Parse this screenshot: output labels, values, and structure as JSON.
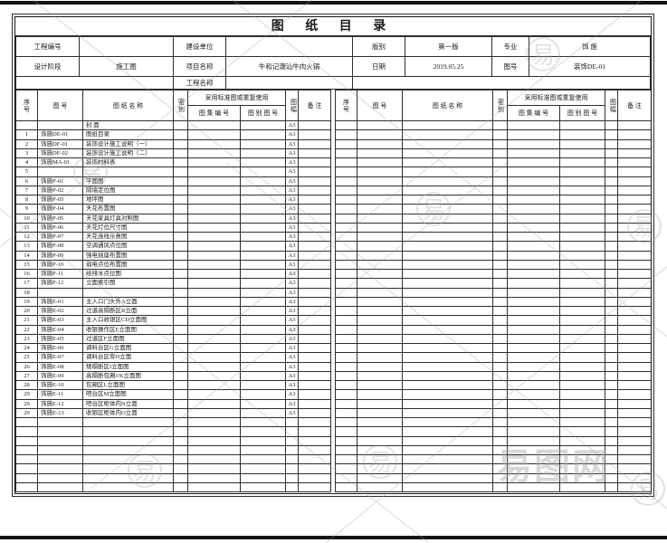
{
  "page": {
    "title": "图  纸  目  录"
  },
  "watermark": {
    "text": "易图网",
    "glyph": "易"
  },
  "header": {
    "project_no": {
      "label": "工程编号",
      "value": ""
    },
    "construction_unit": {
      "label": "建设单位",
      "value": ""
    },
    "edition": {
      "label": "版别",
      "value": "第一版"
    },
    "major": {
      "label": "专业",
      "value": "饰 施"
    },
    "design_stage": {
      "label": "设计阶段",
      "value": "施工图"
    },
    "project_name": {
      "label": "项目名称",
      "value": "牛和记潮汕牛肉火锅"
    },
    "date": {
      "label": "日期",
      "value": "2019.05.25"
    },
    "drawing_no": {
      "label": "图号",
      "value": "装饰DE-01"
    },
    "engineering_name": {
      "label": "工程名称",
      "value": ""
    }
  },
  "catalog": {
    "row_count": 40,
    "headers": {
      "no": "序号",
      "dwg": "图  号",
      "name": "图 纸 名 称",
      "secrecy": "密别",
      "reuse": "采用标准图或重复使用",
      "atlas_no": "图 集 编 号",
      "cat_no": "图 别 图 号",
      "size": "图幅",
      "note": "备  注"
    },
    "left_rows": [
      {
        "no": "",
        "dwg": "",
        "name": "封 面",
        "size": "A3"
      },
      {
        "no": "1",
        "dwg": "饰施DE-01",
        "name": "图纸目录",
        "size": "A3"
      },
      {
        "no": "2",
        "dwg": "饰施DF-01",
        "name": "装饰设计施工说明（一）",
        "size": "A3"
      },
      {
        "no": "3",
        "dwg": "饰施DF-02",
        "name": "装饰设计施工说明（二）",
        "size": "A3"
      },
      {
        "no": "4",
        "dwg": "饰施MA-01",
        "name": "装饰材料表",
        "size": "A3"
      },
      {
        "no": "5",
        "dwg": "",
        "name": "",
        "size": "A3"
      },
      {
        "no": "6",
        "dwg": "饰施P-01",
        "name": "平面图",
        "size": "A3"
      },
      {
        "no": "7",
        "dwg": "饰施P-02",
        "name": "隔墙定位图",
        "size": "A3"
      },
      {
        "no": "8",
        "dwg": "饰施P-03",
        "name": "地坪图",
        "size": "A3"
      },
      {
        "no": "9",
        "dwg": "饰施P-04",
        "name": "天花布置图",
        "size": "A3"
      },
      {
        "no": "10",
        "dwg": "饰施P-05",
        "name": "天花家具灯具对照图",
        "size": "A3"
      },
      {
        "no": "11",
        "dwg": "饰施P-06",
        "name": "天花灯位尺寸图",
        "size": "A3"
      },
      {
        "no": "12",
        "dwg": "饰施P-07",
        "name": "天花连线示意图",
        "size": "A3"
      },
      {
        "no": "13",
        "dwg": "饰施P-08",
        "name": "空调通风点位图",
        "size": "A3"
      },
      {
        "no": "14",
        "dwg": "饰施P-09",
        "name": "强电插座布置图",
        "size": "A3"
      },
      {
        "no": "15",
        "dwg": "饰施P-10",
        "name": "弱电点位布置图",
        "size": "A3"
      },
      {
        "no": "16",
        "dwg": "饰施P-11",
        "name": "给排水点位图",
        "size": "A3"
      },
      {
        "no": "17",
        "dwg": "饰施P-12",
        "name": "立面索引图",
        "size": "A3"
      },
      {
        "no": "18",
        "dwg": "",
        "name": "",
        "size": "A3"
      },
      {
        "no": "19",
        "dwg": "饰施E-01",
        "name": "主入口门头外A立面",
        "size": "A3"
      },
      {
        "no": "20",
        "dwg": "饰施E-02",
        "name": "过道高隔断区B立面",
        "size": "A3"
      },
      {
        "no": "21",
        "dwg": "饰施E-03",
        "name": "主入口收银区CD立面图",
        "size": "A3"
      },
      {
        "no": "22",
        "dwg": "饰施E-04",
        "name": "收银操作区E立面图",
        "size": "A3"
      },
      {
        "no": "23",
        "dwg": "饰施E-05",
        "name": "过道区F立面图",
        "size": "A3"
      },
      {
        "no": "24",
        "dwg": "饰施E-06",
        "name": "调料台区G立面图",
        "size": "A3"
      },
      {
        "no": "25",
        "dwg": "饰施E-07",
        "name": "调料台区背H立面",
        "size": "A3"
      },
      {
        "no": "26",
        "dwg": "饰施E-08",
        "name": "矮隔断区I立面图",
        "size": "A3"
      },
      {
        "no": "27",
        "dwg": "饰施E-09",
        "name": "高隔断包厢J/K立面图",
        "size": "A3"
      },
      {
        "no": "28",
        "dwg": "饰施E-10",
        "name": "包厢区L立面图",
        "size": "A3"
      },
      {
        "no": "29",
        "dwg": "饰施E-11",
        "name": "吧台区M立面图",
        "size": "A3"
      },
      {
        "no": "29",
        "dwg": "饰施E-12",
        "name": "吧台区柜体内N立面",
        "size": "A3"
      },
      {
        "no": "29",
        "dwg": "饰施E-13",
        "name": "收银区柜体内O立面",
        "size": "A3"
      }
    ],
    "right_rows": []
  }
}
